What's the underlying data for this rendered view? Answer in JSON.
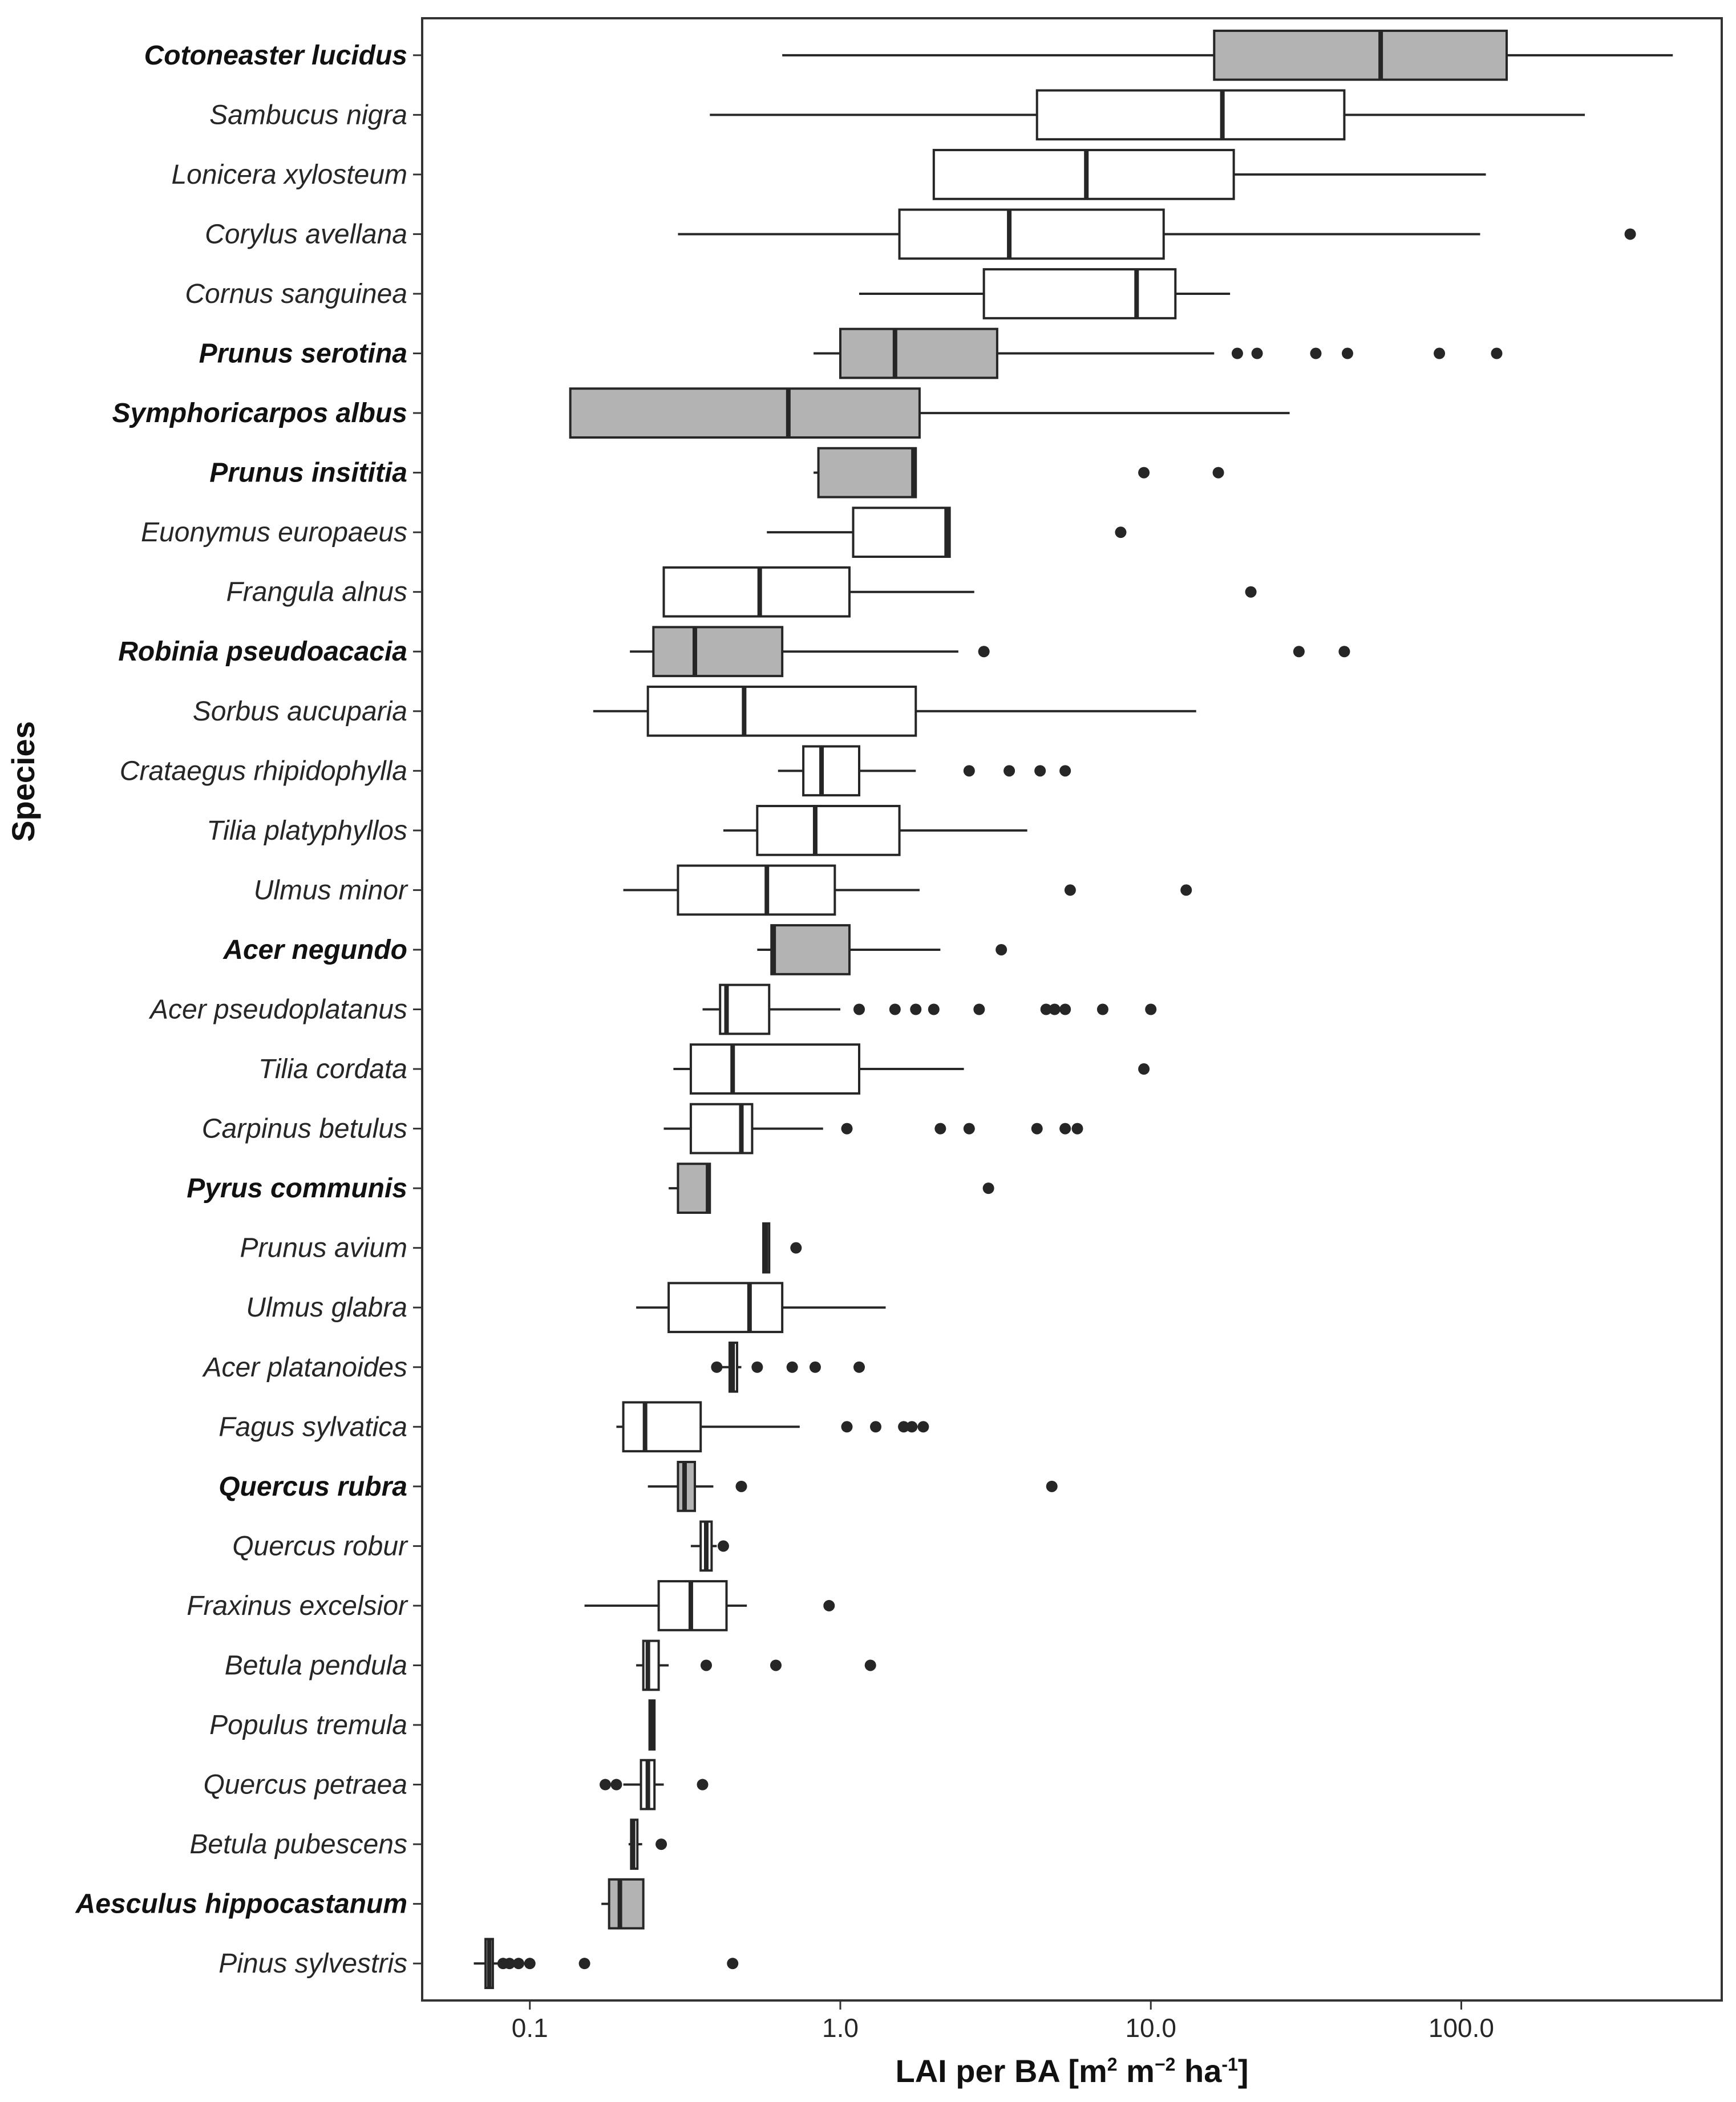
{
  "chart_data": {
    "type": "boxplot",
    "orientation": "horizontal",
    "xscale": "log10",
    "xlim": [
      0.045,
      690
    ],
    "xlabel": "LAI per BA [m² m⁻² ha⁻¹]",
    "xlabel_parts": {
      "main": "LAI per BA [m",
      "s1": "2",
      "mid": " m",
      "s2": "−2",
      "mid2": " ha",
      "s3": "-1",
      "end": "]"
    },
    "ylabel": "Species",
    "xticks": [
      0.1,
      1.0,
      10.0,
      100.0
    ],
    "xtick_labels": [
      "0.1",
      "1.0",
      "10.0",
      "100.0"
    ],
    "colors": {
      "non_native_fill": "#b3b3b3",
      "native_fill": "#ffffff",
      "stroke": "#262626"
    },
    "series": [
      {
        "species": "Cotoneaster lucidus",
        "bold": true,
        "whislo": 0.65,
        "q1": 16,
        "med": 55,
        "q3": 140,
        "whishi": 480,
        "outliers": []
      },
      {
        "species": "Sambucus nigra",
        "bold": false,
        "whislo": 0.38,
        "q1": 4.3,
        "med": 17,
        "q3": 42,
        "whishi": 250,
        "outliers": []
      },
      {
        "species": "Lonicera xylosteum",
        "bold": false,
        "whislo": null,
        "q1": 2.0,
        "med": 6.2,
        "q3": 18.5,
        "whishi": 120,
        "outliers": []
      },
      {
        "species": "Corylus avellana",
        "bold": false,
        "whislo": 0.3,
        "q1": 1.55,
        "med": 3.5,
        "q3": 11,
        "whishi": 115,
        "outliers": [
          350
        ]
      },
      {
        "species": "Cornus sanguinea",
        "bold": false,
        "whislo": 1.15,
        "q1": 2.9,
        "med": 9,
        "q3": 12,
        "whishi": 18,
        "outliers": []
      },
      {
        "species": "Prunus serotina",
        "bold": true,
        "whislo": 0.82,
        "q1": 1.0,
        "med": 1.5,
        "q3": 3.2,
        "whishi": 16,
        "outliers": [
          19,
          22,
          34,
          43,
          85,
          130
        ]
      },
      {
        "species": "Symphoricarpos albus",
        "bold": true,
        "whislo": null,
        "q1": 0.135,
        "med": 0.68,
        "q3": 1.8,
        "whishi": 28,
        "outliers": []
      },
      {
        "species": "Prunus insititia",
        "bold": true,
        "whislo": 0.82,
        "q1": 0.85,
        "med": 1.72,
        "q3": 1.75,
        "whishi": null,
        "outliers": [
          9.5,
          16.5
        ]
      },
      {
        "species": "Euonymus europaeus",
        "bold": false,
        "whislo": 0.58,
        "q1": 1.1,
        "med": 2.2,
        "q3": 2.25,
        "whishi": null,
        "outliers": [
          8
        ]
      },
      {
        "species": "Frangula alnus",
        "bold": false,
        "whislo": null,
        "q1": 0.27,
        "med": 0.55,
        "q3": 1.07,
        "whishi": 2.7,
        "outliers": [
          21
        ]
      },
      {
        "species": "Robinia pseudoacacia",
        "bold": true,
        "whislo": 0.21,
        "q1": 0.25,
        "med": 0.34,
        "q3": 0.65,
        "whishi": 2.4,
        "outliers": [
          2.9,
          30,
          42
        ]
      },
      {
        "species": "Sorbus aucuparia",
        "bold": false,
        "whislo": 0.16,
        "q1": 0.24,
        "med": 0.49,
        "q3": 1.75,
        "whishi": 14,
        "outliers": []
      },
      {
        "species": "Crataegus rhipidophylla",
        "bold": false,
        "whislo": 0.63,
        "q1": 0.76,
        "med": 0.87,
        "q3": 1.15,
        "whishi": 1.75,
        "outliers": [
          2.6,
          3.5,
          4.4,
          5.3
        ]
      },
      {
        "species": "Tilia platyphyllos",
        "bold": false,
        "whislo": 0.42,
        "q1": 0.54,
        "med": 0.83,
        "q3": 1.55,
        "whishi": 4.0,
        "outliers": []
      },
      {
        "species": "Ulmus minor",
        "bold": false,
        "whislo": 0.2,
        "q1": 0.3,
        "med": 0.58,
        "q3": 0.96,
        "whishi": 1.8,
        "outliers": [
          5.5,
          13
        ]
      },
      {
        "species": "Acer negundo",
        "bold": true,
        "whislo": 0.54,
        "q1": 0.6,
        "med": 0.61,
        "q3": 1.07,
        "whishi": 2.1,
        "outliers": [
          3.3
        ]
      },
      {
        "species": "Acer pseudoplatanus",
        "bold": false,
        "whislo": 0.36,
        "q1": 0.41,
        "med": 0.43,
        "q3": 0.59,
        "whishi": 1.0,
        "outliers": [
          1.15,
          1.5,
          1.75,
          2.0,
          2.8,
          4.6,
          4.9,
          5.3,
          7,
          10
        ]
      },
      {
        "species": "Tilia cordata",
        "bold": false,
        "whislo": 0.29,
        "q1": 0.33,
        "med": 0.45,
        "q3": 1.15,
        "whishi": 2.5,
        "outliers": [
          9.5
        ]
      },
      {
        "species": "Carpinus betulus",
        "bold": false,
        "whislo": 0.27,
        "q1": 0.33,
        "med": 0.48,
        "q3": 0.52,
        "whishi": 0.88,
        "outliers": [
          1.05,
          2.1,
          2.6,
          4.3,
          5.3,
          5.8
        ]
      },
      {
        "species": "Pyrus communis",
        "bold": true,
        "whislo": 0.28,
        "q1": 0.3,
        "med": 0.375,
        "q3": 0.38,
        "whishi": null,
        "outliers": [
          3.0
        ]
      },
      {
        "species": "Prunus avium",
        "bold": false,
        "whislo": null,
        "q1": 0.565,
        "med": 0.575,
        "q3": 0.59,
        "whishi": null,
        "outliers": [
          0.72
        ]
      },
      {
        "species": "Ulmus glabra",
        "bold": false,
        "whislo": 0.22,
        "q1": 0.28,
        "med": 0.51,
        "q3": 0.65,
        "whishi": 1.4,
        "outliers": []
      },
      {
        "species": "Acer platanoides",
        "bold": false,
        "whislo": 0.4,
        "q1": 0.44,
        "med": 0.45,
        "q3": 0.465,
        "whishi": 0.48,
        "outliers": [
          0.4,
          0.54,
          0.7,
          0.83,
          1.15
        ]
      },
      {
        "species": "Fagus sylvatica",
        "bold": false,
        "whislo": 0.19,
        "q1": 0.2,
        "med": 0.235,
        "q3": 0.355,
        "whishi": 0.74,
        "outliers": [
          1.05,
          1.3,
          1.6,
          1.7,
          1.85
        ]
      },
      {
        "species": "Quercus rubra",
        "bold": true,
        "whislo": 0.24,
        "q1": 0.3,
        "med": 0.315,
        "q3": 0.34,
        "whishi": 0.39,
        "outliers": [
          0.48,
          4.8
        ]
      },
      {
        "species": "Quercus robur",
        "bold": false,
        "whislo": 0.33,
        "q1": 0.355,
        "med": 0.37,
        "q3": 0.385,
        "whishi": 0.4,
        "outliers": [
          0.42
        ]
      },
      {
        "species": "Fraxinus excelsior",
        "bold": false,
        "whislo": 0.15,
        "q1": 0.26,
        "med": 0.33,
        "q3": 0.43,
        "whishi": 0.5,
        "outliers": [
          0.92
        ]
      },
      {
        "species": "Betula pendula",
        "bold": false,
        "whislo": 0.22,
        "q1": 0.232,
        "med": 0.24,
        "q3": 0.26,
        "whishi": 0.28,
        "outliers": [
          0.37,
          0.62,
          1.25
        ]
      },
      {
        "species": "Populus tremula",
        "bold": false,
        "whislo": null,
        "q1": 0.243,
        "med": 0.247,
        "q3": 0.252,
        "whishi": null,
        "outliers": []
      },
      {
        "species": "Quercus petraea",
        "bold": false,
        "whislo": 0.2,
        "q1": 0.228,
        "med": 0.24,
        "q3": 0.252,
        "whishi": 0.27,
        "outliers": [
          0.175,
          0.19,
          0.36
        ]
      },
      {
        "species": "Betula pubescens",
        "bold": false,
        "whislo": 0.208,
        "q1": 0.212,
        "med": 0.215,
        "q3": 0.222,
        "whishi": 0.23,
        "outliers": [
          0.265
        ]
      },
      {
        "species": "Aesculus hippocastanum",
        "bold": true,
        "whislo": 0.17,
        "q1": 0.18,
        "med": 0.195,
        "q3": 0.232,
        "whishi": null,
        "outliers": []
      },
      {
        "species": "Pinus sylvestris",
        "bold": false,
        "whislo": 0.066,
        "q1": 0.072,
        "med": 0.074,
        "q3": 0.076,
        "whishi": 0.08,
        "outliers": [
          0.082,
          0.086,
          0.092,
          0.1,
          0.15,
          0.45
        ]
      }
    ]
  }
}
